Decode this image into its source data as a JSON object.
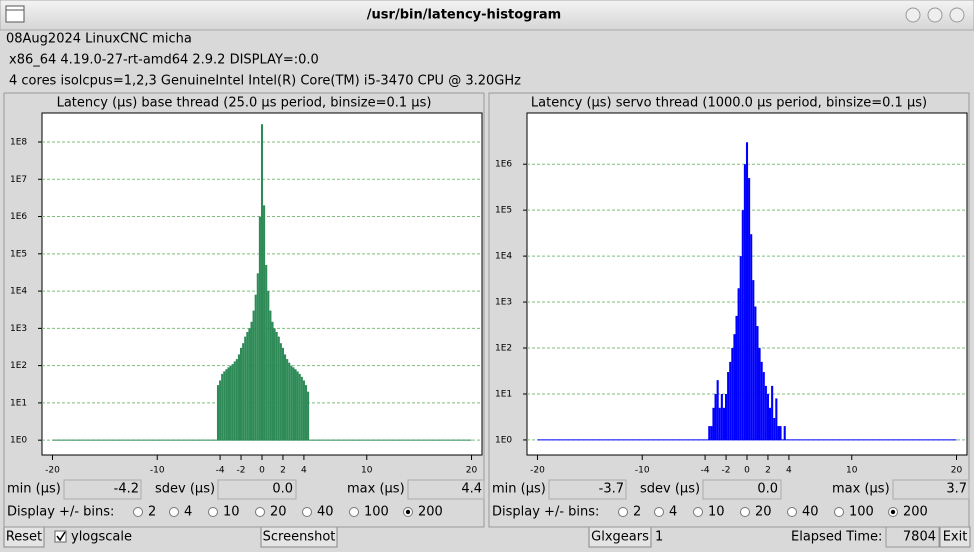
{
  "window": {
    "title": "/usr/bin/latency-histogram"
  },
  "info": [
    "08Aug2024 LinuxCNC micha",
    "x86_64  4.19.0-27-rt-amd64  2.9.2  DISPLAY=:0.0",
    "4 cores  isolcpus=1,2,3   GenuineIntel  Intel(R) Core(TM) i5-3470 CPU @ 3.20GHz"
  ],
  "chart_data": [
    {
      "type": "bar",
      "title": "Latency (µs) base thread (25.0 µs period, binsize=0.1 µs)",
      "color": "#2e8b57",
      "grid_color": "#7fbf7f",
      "log_y": true,
      "grid": true,
      "x": [
        -4.2,
        -4.0,
        -3.8,
        -3.6,
        -3.4,
        -3.2,
        -3.0,
        -2.8,
        -2.6,
        -2.4,
        -2.2,
        -2.0,
        -1.8,
        -1.6,
        -1.4,
        -1.2,
        -1.0,
        -0.8,
        -0.6,
        -0.4,
        -0.2,
        0.0,
        0.2,
        0.4,
        0.6,
        0.8,
        1.0,
        1.2,
        1.4,
        1.6,
        1.8,
        2.0,
        2.2,
        2.4,
        2.6,
        2.8,
        3.0,
        3.2,
        3.4,
        3.6,
        3.8,
        4.0,
        4.2,
        4.4
      ],
      "values": [
        30,
        40,
        60,
        70,
        80,
        90,
        100,
        110,
        130,
        150,
        200,
        300,
        400,
        600,
        800,
        1000,
        1500,
        3000,
        8000,
        30000,
        1000000,
        300000000,
        2000000,
        50000,
        10000,
        3000,
        1500,
        1000,
        800,
        600,
        400,
        300,
        200,
        150,
        120,
        100,
        90,
        80,
        70,
        60,
        50,
        40,
        30,
        20
      ],
      "xlim": [
        -21,
        21
      ],
      "xticks": [
        -20,
        -10,
        -4,
        -2,
        0,
        2,
        4,
        10,
        20
      ],
      "ylim": [
        0.4,
        600000000
      ],
      "yticks": [
        {
          "value": 1,
          "label": "1E0"
        },
        {
          "value": 10,
          "label": "1E1"
        },
        {
          "value": 100,
          "label": "1E2"
        },
        {
          "value": 1000,
          "label": "1E3"
        },
        {
          "value": 10000,
          "label": "1E4"
        },
        {
          "value": 100000,
          "label": "1E5"
        },
        {
          "value": 1000000,
          "label": "1E6"
        },
        {
          "value": 10000000,
          "label": "1E7"
        },
        {
          "value": 100000000,
          "label": "1E8"
        }
      ]
    },
    {
      "type": "bar",
      "title": "Latency (µs) servo thread (1000.0 µs period, binsize=0.1 µs)",
      "color": "#0000ff",
      "grid_color": "#7fbf7f",
      "log_y": true,
      "grid": true,
      "x": [
        -3.6,
        -3.4,
        -3.2,
        -3.0,
        -2.8,
        -2.6,
        -2.4,
        -2.2,
        -2.0,
        -1.8,
        -1.6,
        -1.4,
        -1.2,
        -1.0,
        -0.8,
        -0.6,
        -0.4,
        -0.2,
        0.0,
        0.2,
        0.4,
        0.6,
        0.8,
        1.0,
        1.2,
        1.4,
        1.6,
        1.8,
        2.0,
        2.2,
        2.4,
        2.6,
        2.8,
        3.0,
        3.2,
        3.4,
        3.6
      ],
      "values": [
        2,
        2,
        5,
        10,
        20,
        5,
        10,
        5,
        10,
        30,
        50,
        100,
        200,
        500,
        2000,
        10000,
        100000,
        1000000,
        3000000,
        500000,
        30000,
        3000,
        800,
        300,
        100,
        50,
        30,
        15,
        10,
        5,
        15,
        3,
        8,
        2,
        2,
        1,
        2
      ],
      "xlim": [
        -21,
        21
      ],
      "xticks": [
        -20,
        -10,
        -4,
        -2,
        0,
        2,
        4,
        10,
        20
      ],
      "ylim": [
        0.47,
        13000000
      ],
      "yticks": [
        {
          "value": 1,
          "label": "1E0"
        },
        {
          "value": 10,
          "label": "1E1"
        },
        {
          "value": 100,
          "label": "1E2"
        },
        {
          "value": 1000,
          "label": "1E3"
        },
        {
          "value": 10000,
          "label": "1E4"
        },
        {
          "value": 100000,
          "label": "1E5"
        },
        {
          "value": 1000000,
          "label": "1E6"
        }
      ]
    }
  ],
  "panels": [
    {
      "min_label": "min (µs)",
      "min": "-4.2",
      "sdev_label": "sdev (µs)",
      "sdev": "0.0",
      "max_label": "max (µs)",
      "max": "4.4",
      "bins_label": "Display +/- bins:",
      "bins_options": [
        2,
        4,
        10,
        20,
        40,
        100,
        200
      ],
      "bins_selected": 200
    },
    {
      "min_label": "min (µs)",
      "min": "-3.7",
      "sdev_label": "sdev (µs)",
      "sdev": "0.0",
      "max_label": "max (µs)",
      "max": "3.7",
      "bins_label": "Display +/- bins:",
      "bins_options": [
        2,
        4,
        10,
        20,
        40,
        100,
        200
      ],
      "bins_selected": 200
    }
  ],
  "controls": {
    "reset": "Reset",
    "ylogscale": "ylogscale",
    "ylogscale_checked": true,
    "screenshot": "Screenshot",
    "glxgears": "Glxgears",
    "glxgears_count": 1,
    "elapsed_label": "Elapsed Time:",
    "elapsed": 7804,
    "exit": "Exit"
  }
}
